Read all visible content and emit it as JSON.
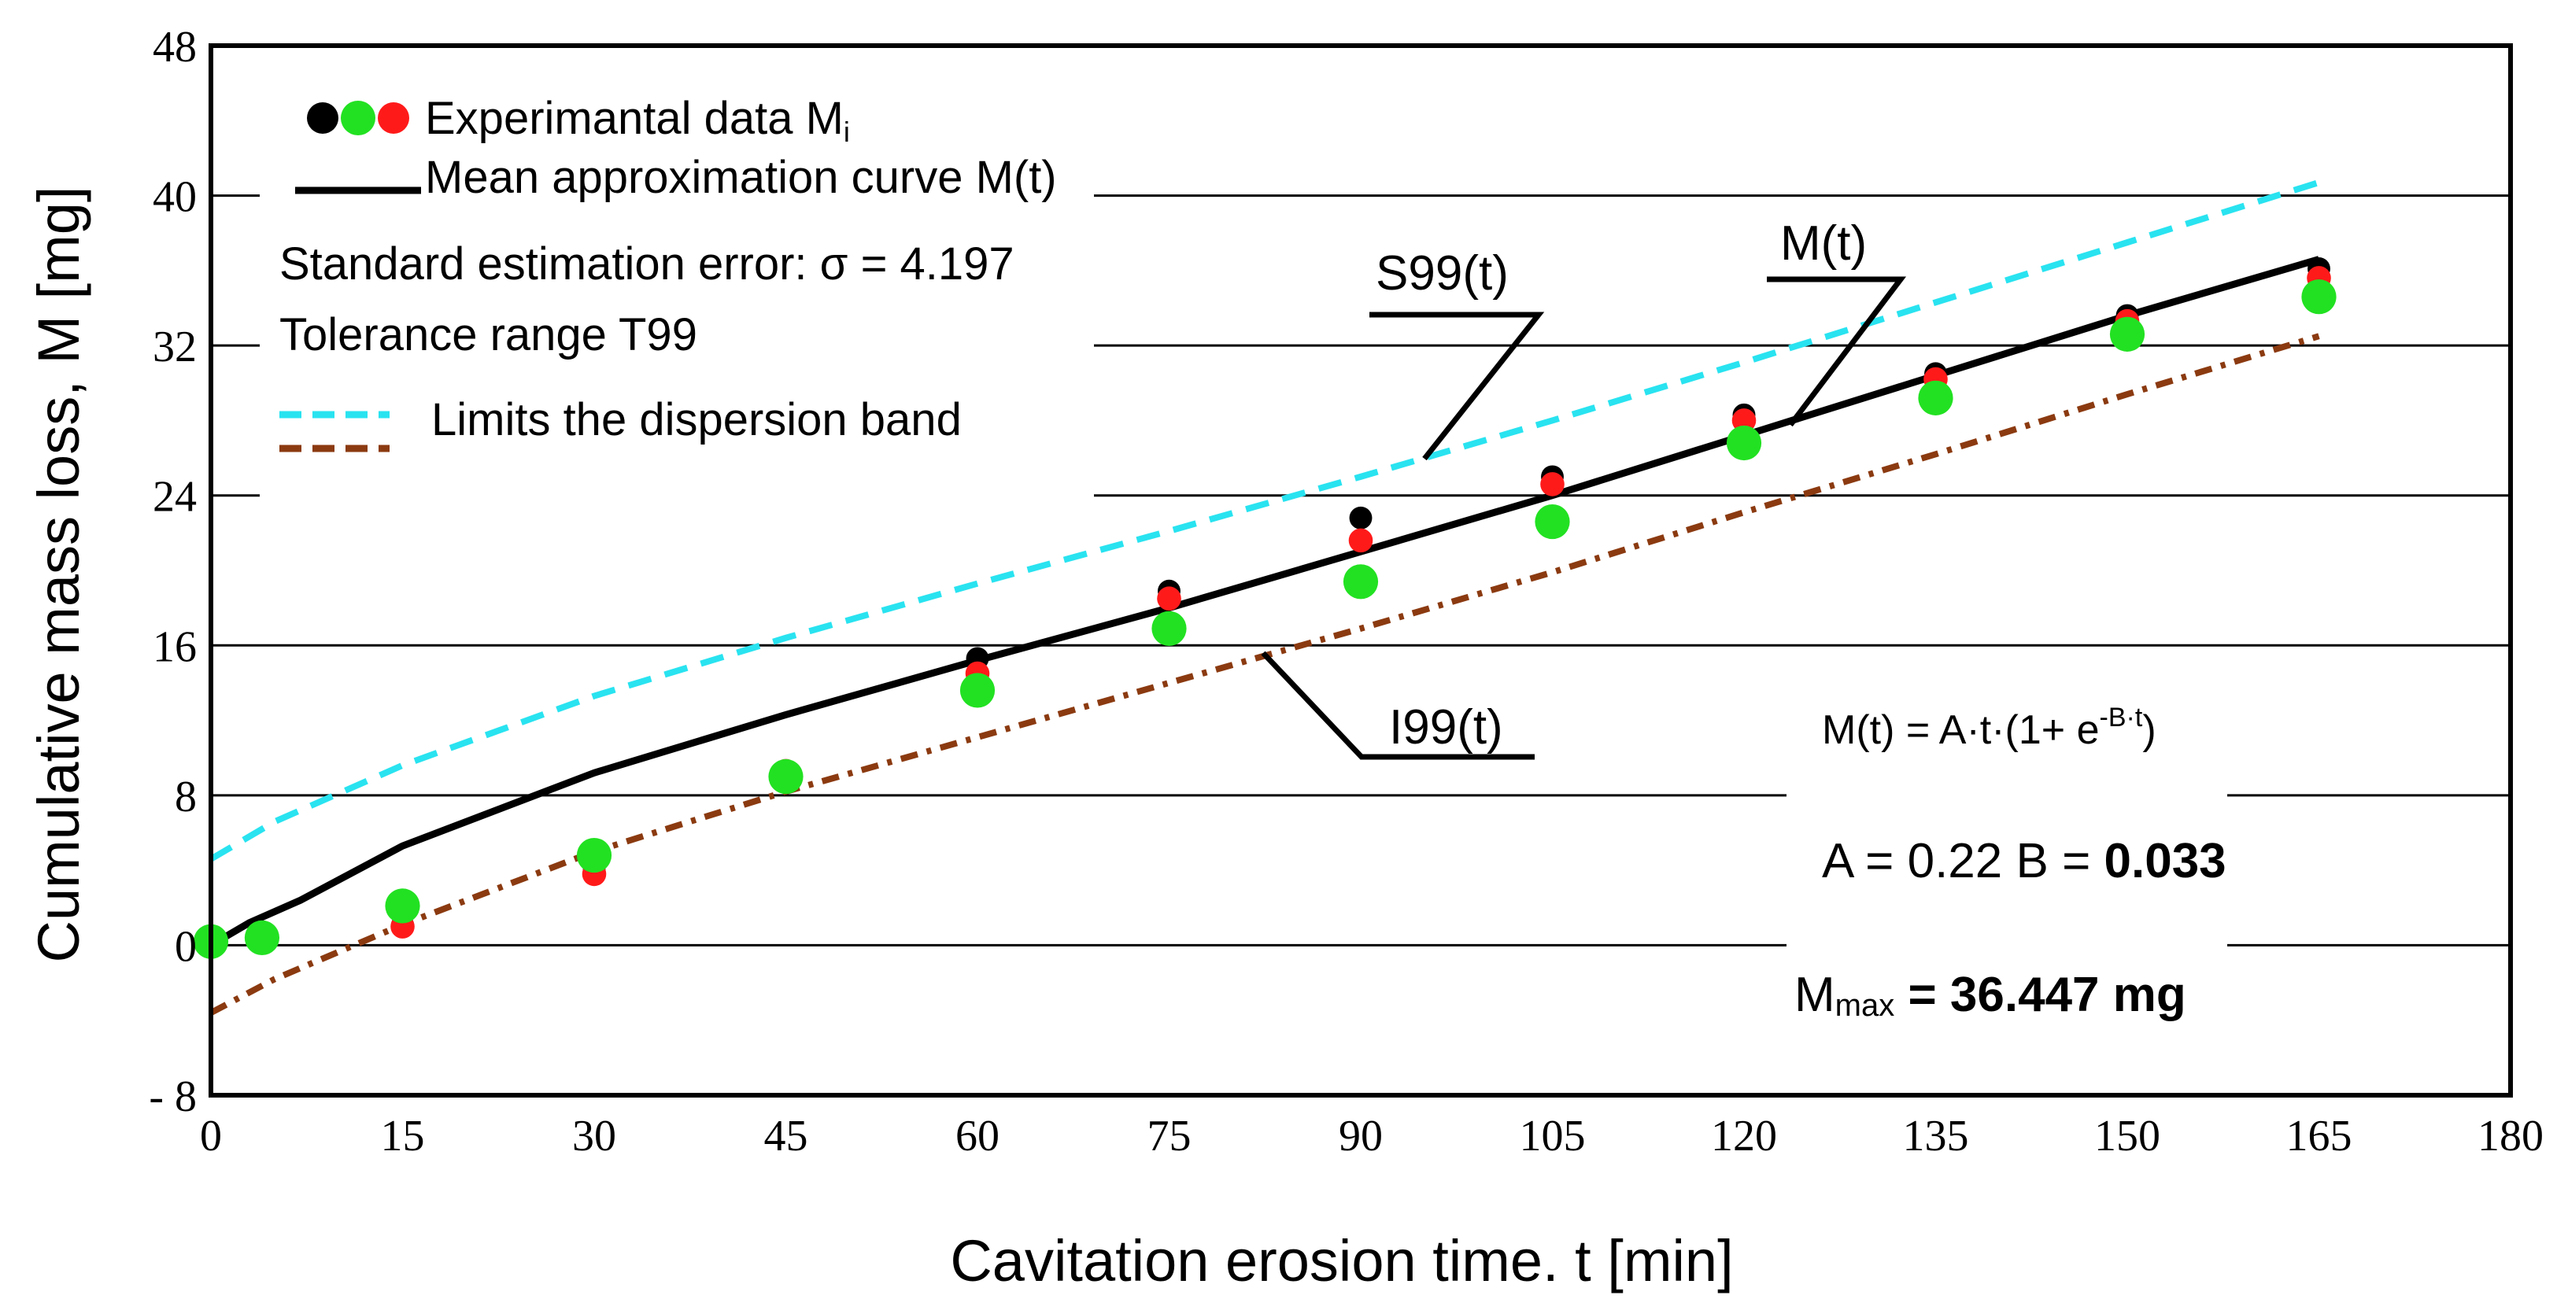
{
  "chart_data": {
    "type": "scatter",
    "xlabel": "Cavitation erosion time. t [min]",
    "ylabel": "Cumulative mass loss,  M [mg]",
    "xlim": [
      0,
      180
    ],
    "ylim": [
      -8,
      48
    ],
    "xticks": [
      0,
      15,
      30,
      45,
      60,
      75,
      90,
      105,
      120,
      135,
      150,
      165,
      180
    ],
    "yticks": [
      -8,
      0,
      8,
      16,
      24,
      32,
      40,
      48
    ],
    "ytick_labels": [
      "- 8",
      "0",
      "8",
      "16",
      "24",
      "32",
      "40",
      "48"
    ],
    "grid": true,
    "colors": {
      "black": "#000000",
      "green": "#22e122",
      "red": "#ff1a1a",
      "upper_limit": "#29e3f0",
      "lower_limit": "#8b3a10"
    },
    "series": [
      {
        "name": "Experimental data (black)",
        "kind": "points",
        "color_key": "black",
        "radius_scale": 0.85,
        "x": [
          0,
          4,
          15,
          30,
          45,
          60,
          75,
          90,
          105,
          120,
          135,
          150,
          165
        ],
        "y": [
          0.1,
          0.4,
          1.1,
          4.0,
          9.2,
          15.3,
          18.9,
          22.8,
          25.0,
          28.3,
          30.5,
          33.6,
          36.1
        ]
      },
      {
        "name": "Experimental data (red)",
        "kind": "points",
        "color_key": "red",
        "radius_scale": 0.9,
        "x": [
          0,
          4,
          15,
          30,
          45,
          60,
          75,
          90,
          105,
          120,
          135,
          150,
          165
        ],
        "y": [
          0.1,
          0.3,
          1.0,
          3.8,
          9.3,
          14.5,
          18.5,
          21.6,
          24.6,
          28.0,
          30.2,
          33.3,
          35.6
        ]
      },
      {
        "name": "Experimental data (green)",
        "kind": "points",
        "color_key": "green",
        "radius_scale": 1.3,
        "x": [
          0,
          4,
          15,
          30,
          45,
          60,
          75,
          90,
          105,
          120,
          135,
          150,
          165
        ],
        "y": [
          0.2,
          0.4,
          2.1,
          4.8,
          9.0,
          13.6,
          16.9,
          19.4,
          22.6,
          26.8,
          29.2,
          32.6,
          34.6
        ]
      },
      {
        "name": "M(t)",
        "kind": "line",
        "color_key": "black",
        "dash": "solid",
        "x": [
          0,
          3,
          7,
          15,
          30,
          45,
          60,
          75,
          90,
          105,
          120,
          135,
          150,
          165
        ],
        "y": [
          0.0,
          1.2,
          2.4,
          5.3,
          9.2,
          12.3,
          15.2,
          18.0,
          21.0,
          24.0,
          27.2,
          30.4,
          33.6,
          36.6
        ]
      },
      {
        "name": "S99(t)",
        "kind": "line",
        "color_key": "upper_limit",
        "dash": "dashed",
        "x": [
          0,
          5,
          15,
          30,
          45,
          60,
          75,
          90,
          105,
          120,
          135,
          150,
          165
        ],
        "y": [
          4.6,
          6.6,
          9.6,
          13.3,
          16.4,
          19.3,
          22.1,
          25.0,
          28.0,
          31.1,
          34.3,
          37.5,
          40.7
        ]
      },
      {
        "name": "I99(t)",
        "kind": "line",
        "color_key": "lower_limit",
        "dash": "dashdot",
        "x": [
          0,
          5,
          15,
          30,
          45,
          60,
          75,
          90,
          105,
          120,
          135,
          150,
          165
        ],
        "y": [
          -3.6,
          -1.8,
          1.1,
          5.0,
          8.2,
          11.1,
          14.0,
          16.9,
          19.9,
          23.1,
          26.2,
          29.4,
          32.5
        ]
      }
    ],
    "legend": {
      "experimental_label": "Experimantal data M",
      "experimental_subscript": "i",
      "mean_label": "Mean approximation curve M(t)",
      "std_error": "Standard estimation error: σ = 4.197",
      "tolerance": "Tolerance range T99",
      "limits": "Limits the dispersion band"
    },
    "annotations": {
      "s99": "S99(t)",
      "mt": "M(t)",
      "i99": "I99(t)"
    },
    "formula": {
      "lhs": "M(t) = A·t·(1+ e",
      "exponent": "-B·t",
      "rhs": ")"
    },
    "params": {
      "a_text": "A = 0.22  B = ",
      "b_value": "0.033",
      "mmax_m": "M",
      "mmax_sub": "max",
      "mmax_value": " = 36.447 mg"
    }
  }
}
